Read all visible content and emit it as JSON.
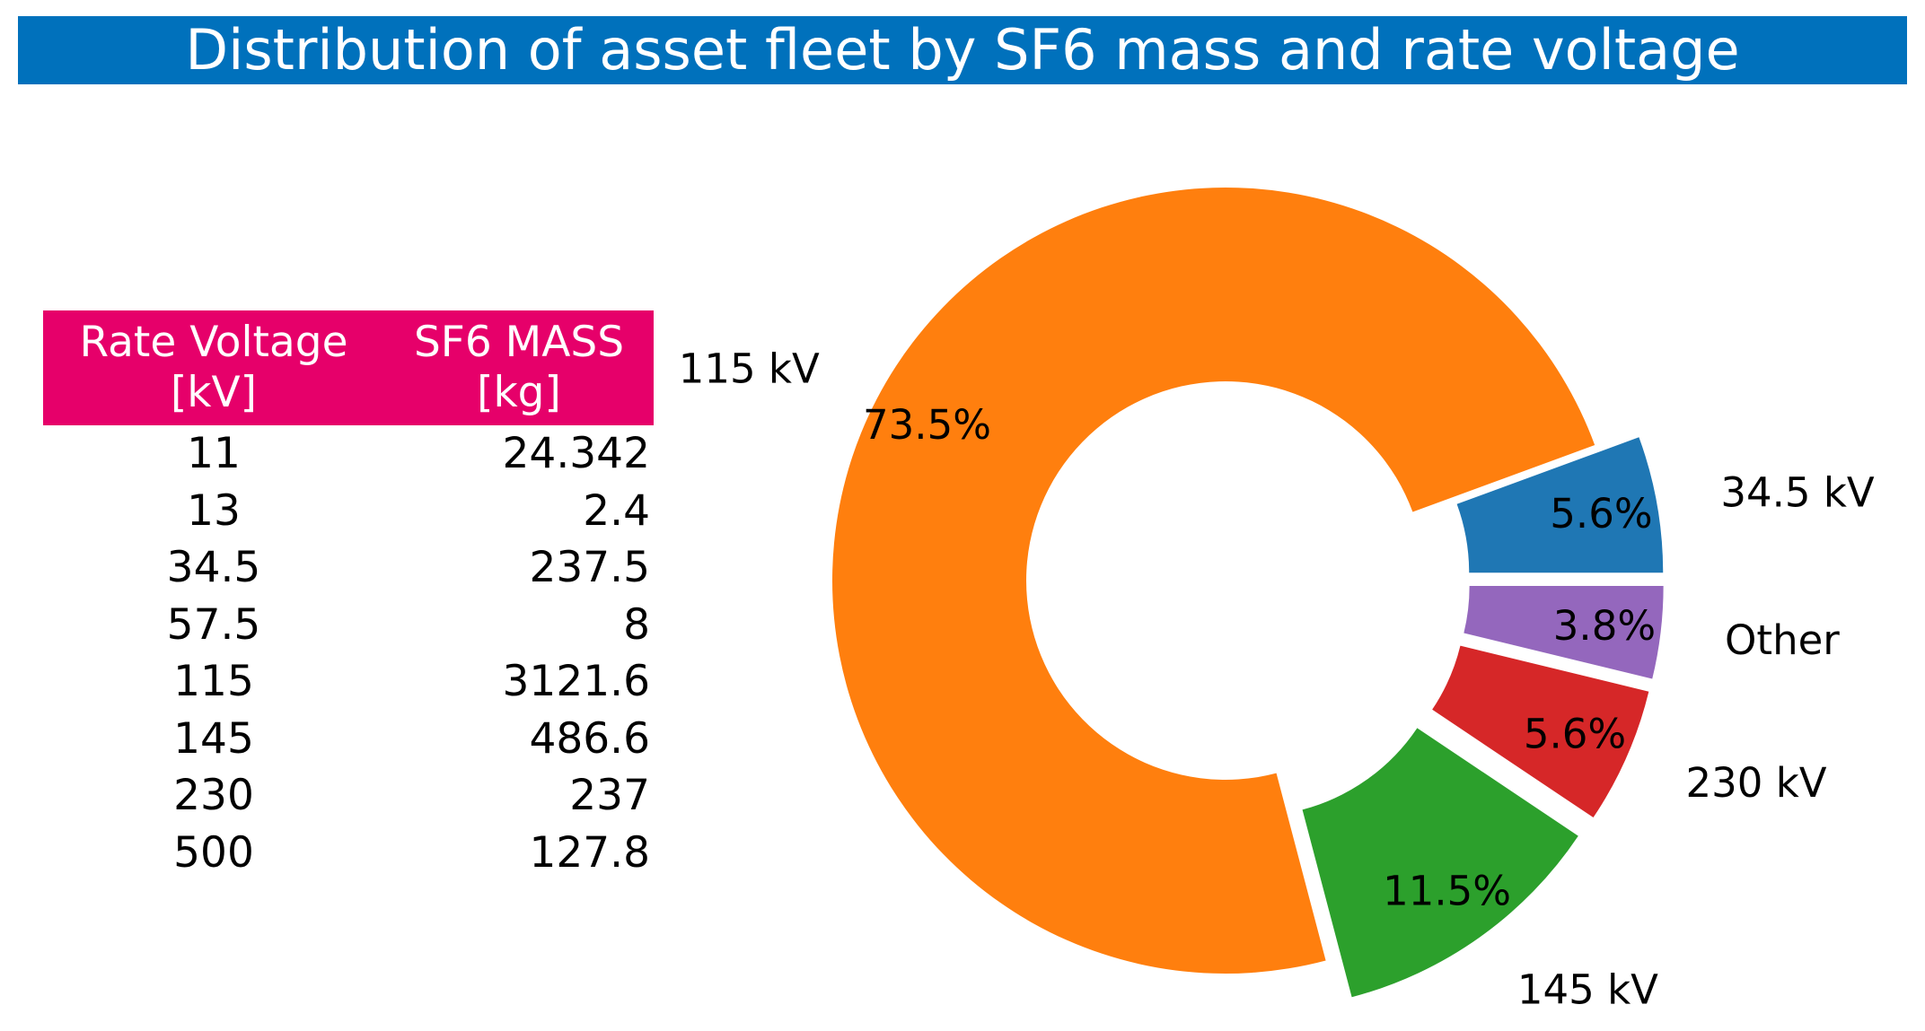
{
  "title": "Distribution of asset fleet by SF6 mass and rate voltage",
  "colors": {
    "title_bg": "#0071bc",
    "table_header_bg": "#e6006a",
    "slice_34_5": "#1f77b4",
    "slice_115": "#ff7f0e",
    "slice_145": "#2ca02c",
    "slice_230": "#d62728",
    "slice_other": "#9467bd"
  },
  "table": {
    "headers": [
      [
        "Rate Voltage",
        "[kV]"
      ],
      [
        "SF6 MASS",
        "[kg]"
      ]
    ],
    "rows": [
      {
        "voltage": "11",
        "mass": "24.342"
      },
      {
        "voltage": "13",
        "mass": "2.4"
      },
      {
        "voltage": "34.5",
        "mass": "237.5"
      },
      {
        "voltage": "57.5",
        "mass": "8"
      },
      {
        "voltage": "115",
        "mass": "3121.6"
      },
      {
        "voltage": "145",
        "mass": "486.6"
      },
      {
        "voltage": "230",
        "mass": "237"
      },
      {
        "voltage": "500",
        "mass": "127.8"
      }
    ]
  },
  "chart_data": {
    "type": "pie",
    "subtype": "donut",
    "title": "Distribution of asset fleet by SF6 mass and rate voltage",
    "start_angle_deg": 0,
    "direction": "counterclockwise",
    "slices": [
      {
        "label": "34.5 kV",
        "value": 5.6,
        "pct_label": "5.6%",
        "explode": true,
        "color_key": "slice_34_5"
      },
      {
        "label": "115 kV",
        "value": 73.5,
        "pct_label": "73.5%",
        "explode": false,
        "color_key": "slice_115"
      },
      {
        "label": "145 kV",
        "value": 11.5,
        "pct_label": "11.5%",
        "explode": true,
        "color_key": "slice_145"
      },
      {
        "label": "230 kV",
        "value": 5.6,
        "pct_label": "5.6%",
        "explode": true,
        "color_key": "slice_230"
      },
      {
        "label": "Other",
        "value": 3.8,
        "pct_label": "3.8%",
        "explode": true,
        "color_key": "slice_other"
      }
    ]
  }
}
